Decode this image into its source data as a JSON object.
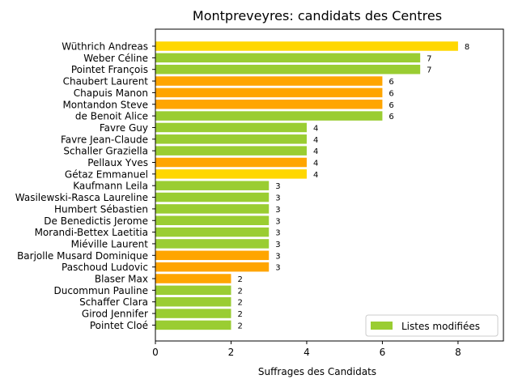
{
  "chart_data": {
    "type": "bar",
    "orientation": "horizontal",
    "title": "Montpreveyres: candidats des Centres",
    "xlabel": "Suffrages des Candidats",
    "ylabel": "",
    "xlim": [
      0,
      9.2
    ],
    "xticks": [
      0,
      2,
      4,
      6,
      8
    ],
    "grid": false,
    "legend": {
      "position": "bottom-right",
      "entries": [
        {
          "label": "Listes modifiées",
          "color": "#9acd32"
        }
      ]
    },
    "colors": {
      "green": "#9acd32",
      "orange": "#ffa500",
      "gold": "#ffd700"
    },
    "bars": [
      {
        "label": "Wüthrich Andreas",
        "value": 8,
        "color": "#ffd700"
      },
      {
        "label": "Weber Céline",
        "value": 7,
        "color": "#9acd32"
      },
      {
        "label": "Pointet François",
        "value": 7,
        "color": "#9acd32"
      },
      {
        "label": "Chaubert Laurent",
        "value": 6,
        "color": "#ffa500"
      },
      {
        "label": "Chapuis Manon",
        "value": 6,
        "color": "#ffa500"
      },
      {
        "label": "Montandon Steve",
        "value": 6,
        "color": "#ffa500"
      },
      {
        "label": "de Benoit Alice",
        "value": 6,
        "color": "#9acd32"
      },
      {
        "label": "Favre Guy",
        "value": 4,
        "color": "#9acd32"
      },
      {
        "label": "Favre Jean-Claude",
        "value": 4,
        "color": "#9acd32"
      },
      {
        "label": "Schaller Graziella",
        "value": 4,
        "color": "#9acd32"
      },
      {
        "label": "Pellaux Yves",
        "value": 4,
        "color": "#ffa500"
      },
      {
        "label": "Gétaz Emmanuel",
        "value": 4,
        "color": "#ffd700"
      },
      {
        "label": "Kaufmann Leila",
        "value": 3,
        "color": "#9acd32"
      },
      {
        "label": "Wasilewski-Rasca Laureline",
        "value": 3,
        "color": "#9acd32"
      },
      {
        "label": "Humbert Sébastien",
        "value": 3,
        "color": "#9acd32"
      },
      {
        "label": "De Benedictis Jerome",
        "value": 3,
        "color": "#9acd32"
      },
      {
        "label": "Morandi-Bettex Laetitia",
        "value": 3,
        "color": "#9acd32"
      },
      {
        "label": "Miéville Laurent",
        "value": 3,
        "color": "#9acd32"
      },
      {
        "label": "Barjolle Musard Dominique",
        "value": 3,
        "color": "#ffa500"
      },
      {
        "label": "Paschoud Ludovic",
        "value": 3,
        "color": "#ffa500"
      },
      {
        "label": "Blaser Max",
        "value": 2,
        "color": "#ffa500"
      },
      {
        "label": "Ducommun Pauline",
        "value": 2,
        "color": "#9acd32"
      },
      {
        "label": "Schaffer Clara",
        "value": 2,
        "color": "#9acd32"
      },
      {
        "label": "Girod Jennifer",
        "value": 2,
        "color": "#9acd32"
      },
      {
        "label": "Pointet Cloé",
        "value": 2,
        "color": "#9acd32"
      }
    ]
  }
}
